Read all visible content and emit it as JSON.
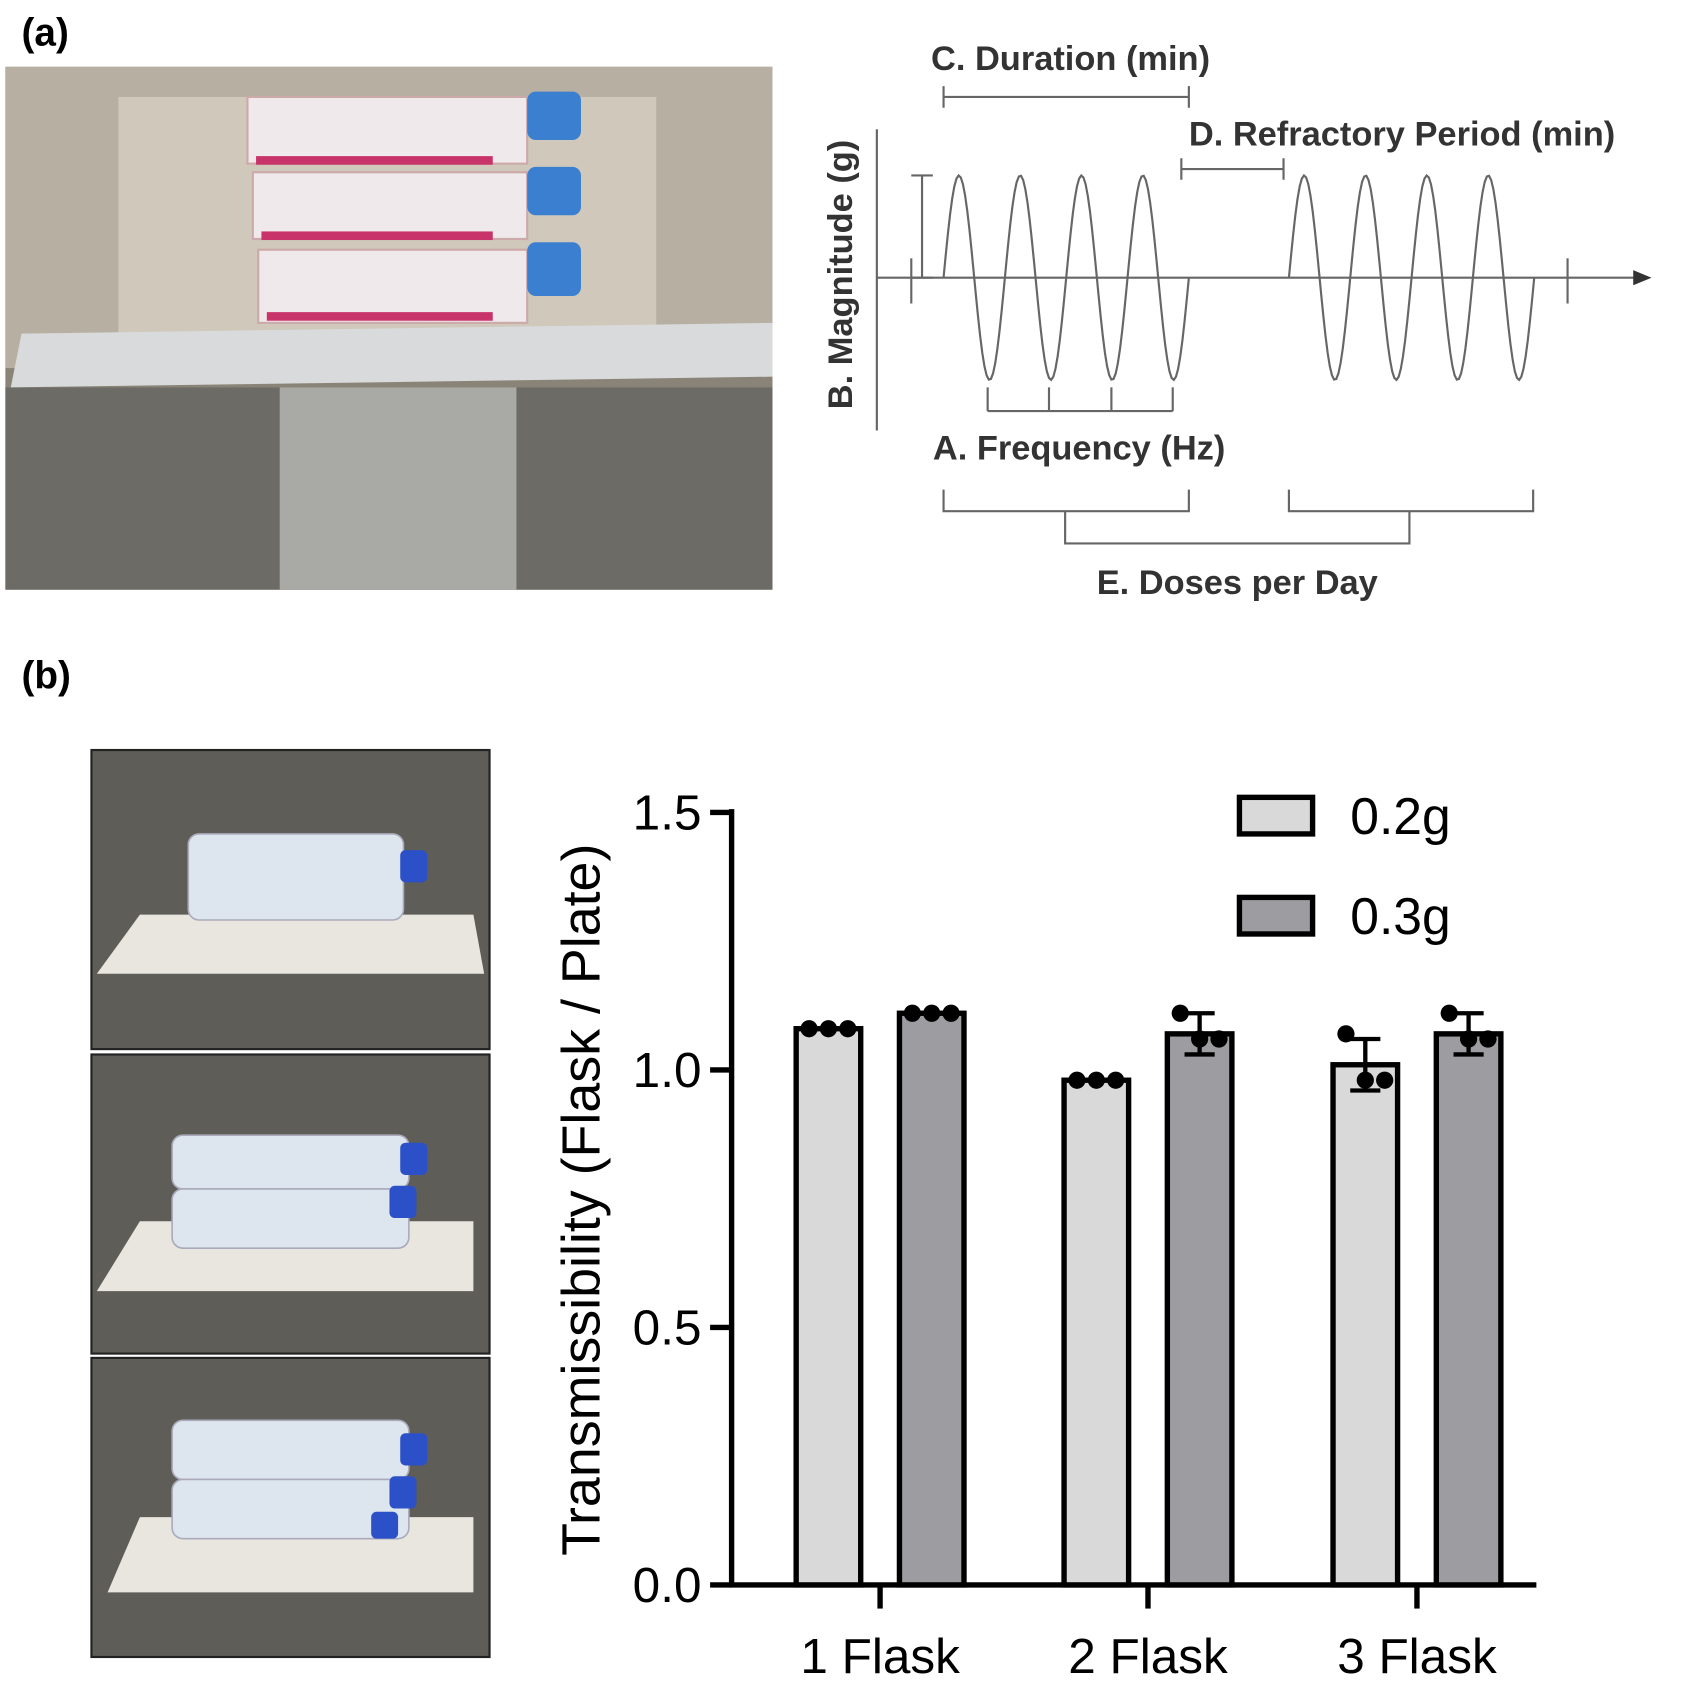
{
  "panels": {
    "a": "(a)",
    "b": "(b)"
  },
  "diagram": {
    "duration": "C. Duration (min)",
    "refractory": "D. Refractory Period (min)",
    "magnitude": "B. Magnitude (g)",
    "frequency": "A. Frequency (Hz)",
    "doses": "E. Doses per Day"
  },
  "chart_data": {
    "type": "bar",
    "y_label": "Transmissibility (Flask / Plate)",
    "categories": [
      "1 Flask",
      "2 Flask",
      "3 Flask"
    ],
    "series": [
      {
        "name": "0.2g",
        "color": "#d9d9d9",
        "values": [
          1.08,
          0.98,
          1.01
        ],
        "errors": [
          0,
          0,
          0.05
        ],
        "points": [
          [
            1.08,
            1.08,
            1.08
          ],
          [
            0.98,
            0.98,
            0.98
          ],
          [
            1.07,
            0.98,
            0.98
          ]
        ]
      },
      {
        "name": "0.3g",
        "color": "#9c9ca1",
        "values": [
          1.11,
          1.07,
          1.07
        ],
        "errors": [
          0,
          0.04,
          0.04
        ],
        "points": [
          [
            1.11,
            1.11,
            1.11
          ],
          [
            1.11,
            1.06,
            1.06
          ],
          [
            1.11,
            1.06,
            1.06
          ]
        ]
      }
    ],
    "ylim": [
      0,
      1.5
    ],
    "yticks": [
      {
        "value": 0,
        "label": "0.0"
      },
      0.5,
      {
        "value": 1,
        "label": "1.0"
      },
      1.5
    ]
  }
}
